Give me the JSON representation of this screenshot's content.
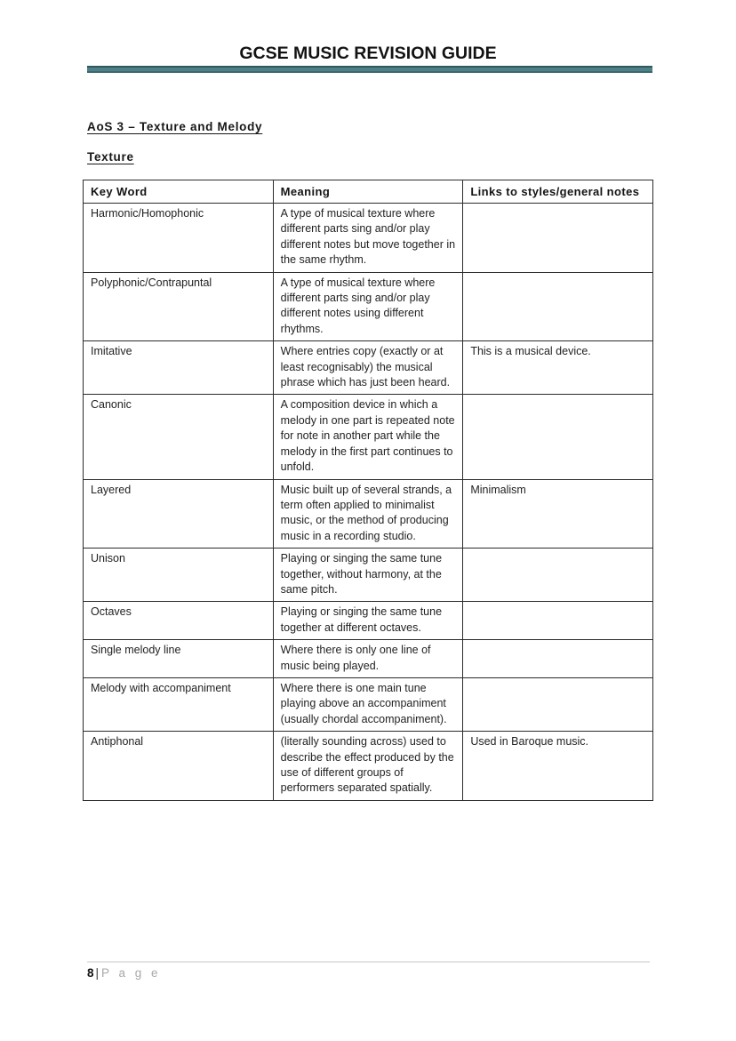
{
  "page": {
    "title": "GCSE MUSIC REVISION GUIDE",
    "section_heading": "AoS 3 – Texture and Melody",
    "subsection_heading": "Texture"
  },
  "colors": {
    "accent_teal": "#4f8086",
    "accent_teal_dark": "#2e5a60",
    "table_border": "#2b2b2b",
    "footer_gray": "#a8a8a8"
  },
  "table": {
    "headers": [
      "Key Word",
      "Meaning",
      "Links to styles/general notes"
    ],
    "rows": [
      {
        "keyword": "Harmonic/Homophonic",
        "meaning": "A type of musical texture where different parts sing and/or play different notes but move together in the same rhythm.",
        "links": ""
      },
      {
        "keyword": "Polyphonic/Contrapuntal",
        "meaning": "A type of musical texture where different parts sing and/or play different notes using different rhythms.",
        "links": ""
      },
      {
        "keyword": "Imitative",
        "meaning": "Where entries copy (exactly or at least recognisably) the musical phrase which has just been heard.",
        "links": "This is a musical device."
      },
      {
        "keyword": "Canonic",
        "meaning": "A composition device in which a melody in one part is repeated note for note in another part while the melody in the first part continues to unfold.",
        "links": ""
      },
      {
        "keyword": "Layered",
        "meaning": "Music built up of several strands, a term often applied to minimalist music, or the method of producing music in a recording studio.",
        "links": "Minimalism"
      },
      {
        "keyword": "Unison",
        "meaning": "Playing or singing the same tune together, without harmony, at the same pitch.",
        "links": ""
      },
      {
        "keyword": "Octaves",
        "meaning": "Playing or singing the same tune together at different octaves.",
        "links": ""
      },
      {
        "keyword": "Single melody line",
        "meaning": "Where there is only one line of music being played.",
        "links": ""
      },
      {
        "keyword": "Melody with accompaniment",
        "meaning": "Where there is one main tune playing above an accompaniment (usually chordal accompaniment).",
        "links": ""
      },
      {
        "keyword": "Antiphonal",
        "meaning": "(literally sounding across) used to describe the effect produced by the use of different groups of performers separated spatially.",
        "links": "Used in Baroque music."
      }
    ]
  },
  "footer": {
    "page_number": "8",
    "separator": "|",
    "label": "P a g e"
  }
}
